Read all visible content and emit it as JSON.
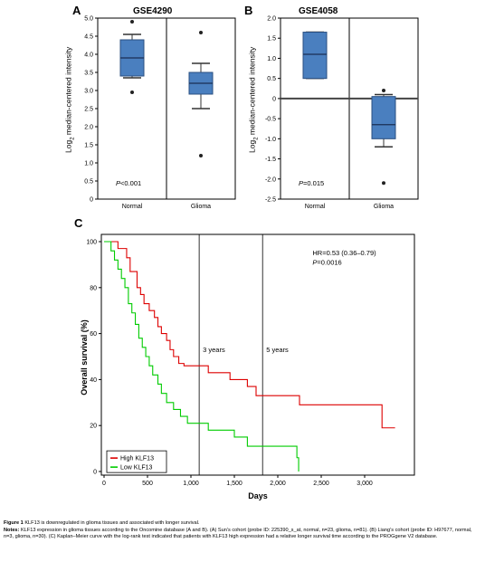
{
  "panels": {
    "A": {
      "letter": "A",
      "title": "GSE4290",
      "ylabel": "Log2 median-centered intensity",
      "pvalue": "P<0.001",
      "chart_data": {
        "type": "box",
        "categories": [
          "Normal",
          "Glioma"
        ],
        "yticks": [
          "5.0",
          "4.5",
          "4.0",
          "3.5",
          "3.0",
          "2.5",
          "2.0",
          "1.5",
          "1.0",
          "0.5",
          "0"
        ],
        "ylim": [
          0,
          5
        ],
        "boxes": [
          {
            "name": "Normal",
            "whisker_low": 3.35,
            "q1": 3.4,
            "median": 3.9,
            "q3": 4.4,
            "whisker_high": 4.55,
            "outliers": [
              4.9,
              2.95
            ]
          },
          {
            "name": "Glioma",
            "whisker_low": 2.5,
            "q1": 2.9,
            "median": 3.2,
            "q3": 3.5,
            "whisker_high": 3.75,
            "outliers": [
              4.6,
              1.2
            ]
          }
        ],
        "box_color": "#4a7fbf"
      }
    },
    "B": {
      "letter": "B",
      "title": "GSE4058",
      "ylabel": "Log2 median-centered intensity",
      "pvalue": "P=0.015",
      "chart_data": {
        "type": "box",
        "categories": [
          "Normal",
          "Glioma"
        ],
        "yticks": [
          "2.0",
          "1.5",
          "1.0",
          "0.5",
          "0",
          "-0.5",
          "-1.0",
          "-1.5",
          "-2.0",
          "-2.5"
        ],
        "ylim": [
          -2.5,
          2.0
        ],
        "boxes": [
          {
            "name": "Normal",
            "whisker_low": 0.5,
            "q1": 0.5,
            "median": 1.1,
            "q3": 1.65,
            "whisker_high": 1.65,
            "outliers": []
          },
          {
            "name": "Glioma",
            "whisker_low": -1.2,
            "q1": -1.0,
            "median": -0.65,
            "q3": 0.05,
            "whisker_high": 0.1,
            "outliers": [
              0.2,
              -2.1
            ]
          }
        ],
        "box_color": "#4a7fbf"
      }
    },
    "C": {
      "letter": "C",
      "ylabel": "Overall survival (%)",
      "xlabel": "Days",
      "hr_text": "HR=0.53 (0.36–0.79)",
      "p_text": "P=0.0016",
      "vline_labels": [
        "3 years",
        "5 years"
      ],
      "legend": [
        "High KLF13",
        "Low KLF13"
      ],
      "chart_data": {
        "type": "line",
        "xlim": [
          0,
          3500
        ],
        "ylim": [
          0,
          100
        ],
        "xticks": [
          "0",
          "500",
          "1,000",
          "1,500",
          "2,000",
          "2,500",
          "3,000"
        ],
        "yticks": [
          "100",
          "80",
          "60",
          "40",
          "20",
          "0"
        ],
        "vlines": [
          1095,
          1825
        ],
        "series": [
          {
            "name": "High KLF13",
            "color": "#dd0000",
            "points": [
              [
                0,
                100
              ],
              [
                120,
                100
              ],
              [
                160,
                97
              ],
              [
                230,
                97
              ],
              [
                260,
                93
              ],
              [
                300,
                87
              ],
              [
                340,
                87
              ],
              [
                380,
                80
              ],
              [
                420,
                77
              ],
              [
                460,
                73
              ],
              [
                520,
                70
              ],
              [
                580,
                67
              ],
              [
                620,
                63
              ],
              [
                660,
                60
              ],
              [
                720,
                57
              ],
              [
                760,
                53
              ],
              [
                800,
                50
              ],
              [
                860,
                47
              ],
              [
                920,
                46
              ],
              [
                1000,
                46
              ],
              [
                1100,
                46
              ],
              [
                1200,
                43
              ],
              [
                1450,
                40
              ],
              [
                1650,
                37
              ],
              [
                1750,
                33
              ],
              [
                2200,
                33
              ],
              [
                2250,
                29
              ],
              [
                3150,
                29
              ],
              [
                3200,
                19
              ],
              [
                3350,
                19
              ]
            ]
          },
          {
            "name": "Low KLF13",
            "color": "#00cc00",
            "points": [
              [
                0,
                100
              ],
              [
                60,
                100
              ],
              [
                80,
                96
              ],
              [
                120,
                92
              ],
              [
                160,
                88
              ],
              [
                200,
                84
              ],
              [
                240,
                80
              ],
              [
                280,
                73
              ],
              [
                320,
                69
              ],
              [
                360,
                64
              ],
              [
                400,
                58
              ],
              [
                440,
                54
              ],
              [
                480,
                50
              ],
              [
                520,
                46
              ],
              [
                560,
                42
              ],
              [
                620,
                38
              ],
              [
                660,
                34
              ],
              [
                720,
                30
              ],
              [
                800,
                27
              ],
              [
                880,
                24
              ],
              [
                960,
                21
              ],
              [
                1150,
                21
              ],
              [
                1200,
                18
              ],
              [
                1500,
                15
              ],
              [
                1650,
                11
              ],
              [
                2200,
                11
              ],
              [
                2220,
                6
              ],
              [
                2240,
                0
              ]
            ]
          }
        ]
      }
    }
  },
  "caption": {
    "line1_bold": "Figure 1",
    "line1_text": "KLF13 is downregulated in glioma tissues and associated with longer survival.",
    "notes_label": "Notes:",
    "notes_text": "KLF13 expression in glioma tissues according to the Oncomine database (A and B). (A) Sun’s cohort (probe ID: 225390_s_at, normal, n=23, glioma, n=81). (B) Liang’s cohort (probe ID: H97677, normal, n=3, glioma, n=30). (C) Kaplan–Meier curve with the log-rank test indicated that patients with KLF13 high expression had a relative longer survival time according to the PROGgene V2 database."
  }
}
